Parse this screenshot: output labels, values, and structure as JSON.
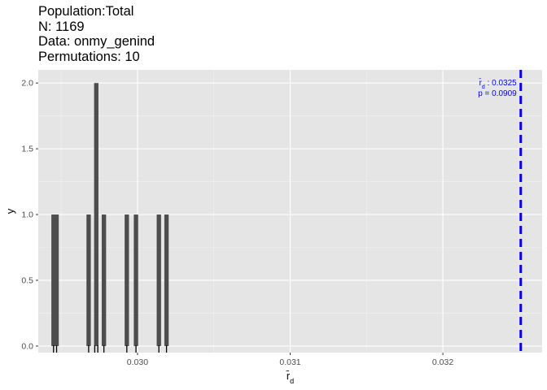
{
  "title_lines": {
    "population": "Population:Total",
    "n": "N: 1169",
    "data": "Data: onmy_genind",
    "permutations": "Permutations: 10"
  },
  "chart_data": {
    "type": "bar",
    "xlabel": "r̄d",
    "ylabel": "y",
    "xlim": [
      0.02935,
      0.03265
    ],
    "ylim": [
      -0.05,
      2.1
    ],
    "x_ticks": [
      0.03,
      0.031,
      0.032
    ],
    "x_tick_labels": [
      "0.030",
      "0.031",
      "0.032"
    ],
    "y_ticks": [
      0.0,
      0.5,
      1.0,
      1.5,
      2.0
    ],
    "y_tick_labels": [
      "0.0",
      "0.5",
      "1.0",
      "1.5",
      "2.0"
    ],
    "bins": [
      {
        "x": 0.02945,
        "count": 1
      },
      {
        "x": 0.02947,
        "count": 1
      },
      {
        "x": 0.02968,
        "count": 1
      },
      {
        "x": 0.02973,
        "count": 2
      },
      {
        "x": 0.02978,
        "count": 1
      },
      {
        "x": 0.02993,
        "count": 1
      },
      {
        "x": 0.02999,
        "count": 1
      },
      {
        "x": 0.03014,
        "count": 1
      },
      {
        "x": 0.03019,
        "count": 1
      }
    ],
    "rug": [
      0.02945,
      0.02947,
      0.02968,
      0.02972,
      0.02974,
      0.02978,
      0.02993,
      0.02999,
      0.03014,
      0.03019
    ],
    "observed": {
      "value": 0.03251,
      "label": "r̄d : 0.0325",
      "p_label": "p = 0.0909",
      "color": "#0000ff"
    },
    "colors": {
      "panel": "#e5e5e5",
      "grid_major": "#ffffff",
      "bar": "#4d4d4d",
      "rug": "#000000"
    }
  }
}
